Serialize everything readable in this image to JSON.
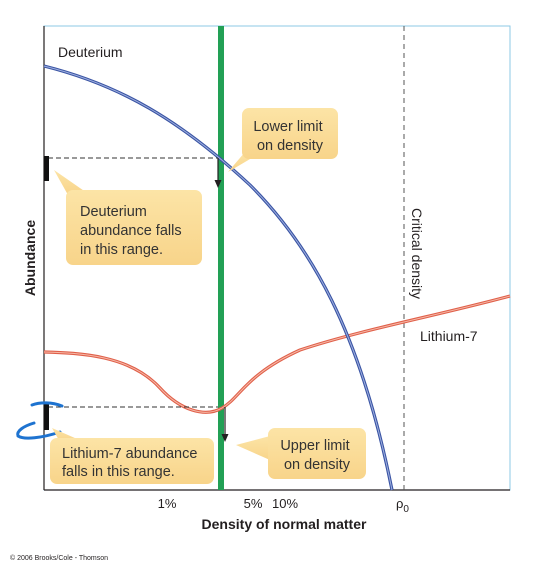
{
  "figure": {
    "y_axis_label": "Abundance",
    "x_axis_label": "Density of normal matter",
    "x_ticks": [
      "1%",
      "5%",
      "10%",
      "ρ",
      "0"
    ],
    "curves": {
      "deuterium": "Deuterium",
      "lithium": "Lithium-7"
    },
    "critical_density_label": "Critical density",
    "callouts": {
      "lower_limit": [
        "Lower limit",
        "on density"
      ],
      "upper_limit": [
        "Upper limit",
        "on density"
      ],
      "deuterium_range": [
        "Deuterium",
        "abundance falls",
        "in this range."
      ],
      "lithium_range": [
        "Lithium-7 abundance",
        "falls in this range."
      ]
    },
    "copyright": "© 2006 Brooks/Cole - Thomson",
    "colors": {
      "deuterium": "#3a54a4",
      "lithium": "#e0604a",
      "green_band": "#22a055",
      "callout_fill": "#fbdf9e",
      "frame": "#8ecae6"
    }
  }
}
